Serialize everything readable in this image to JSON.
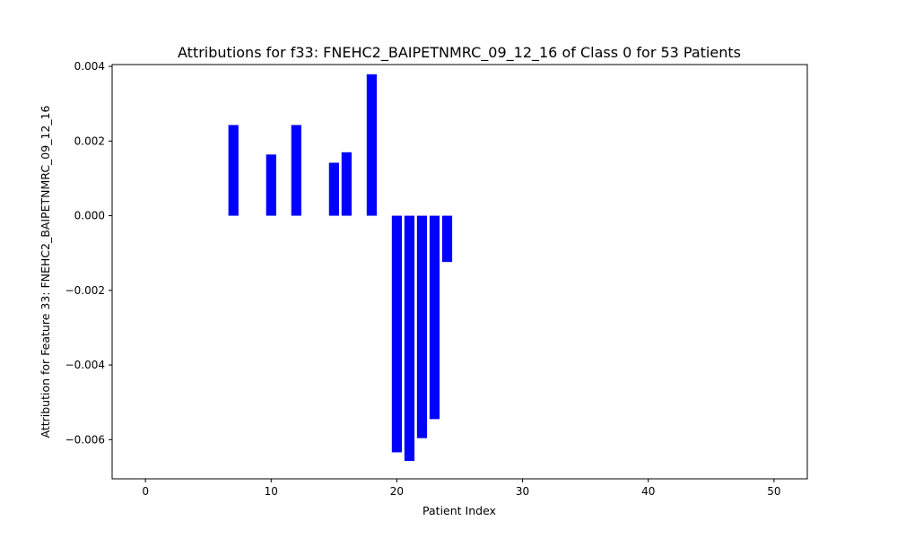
{
  "chart_data": {
    "type": "bar",
    "title": "Attributions for f33: FNEHC2_BAIPETNMRC_09_12_16 of Class 0 for 53 Patients",
    "xlabel": "Patient Index",
    "ylabel": "Attribution for Feature 33: FNEHC2_BAIPETNMRC_09_12_16",
    "xlim": [
      -2.65,
      52.65
    ],
    "ylim": [
      -0.00705,
      0.00405
    ],
    "xticks": [
      0,
      10,
      20,
      30,
      40,
      50
    ],
    "xtick_labels": [
      "0",
      "10",
      "20",
      "30",
      "40",
      "50"
    ],
    "yticks": [
      0.004,
      0.002,
      0.0,
      -0.002,
      -0.004,
      -0.006
    ],
    "ytick_labels": [
      "0.004",
      "0.002",
      "0.000",
      "−0.002",
      "−0.004",
      "−0.006"
    ],
    "bar_width": 0.8,
    "bar_color": "#0000ff",
    "grid": false,
    "x": [
      7,
      10,
      12,
      15,
      16,
      18,
      20,
      21,
      22,
      23,
      24
    ],
    "values": [
      0.00243,
      0.00164,
      0.00243,
      0.00142,
      0.0017,
      0.00379,
      -0.00634,
      -0.00657,
      -0.00596,
      -0.00545,
      -0.00124
    ]
  }
}
